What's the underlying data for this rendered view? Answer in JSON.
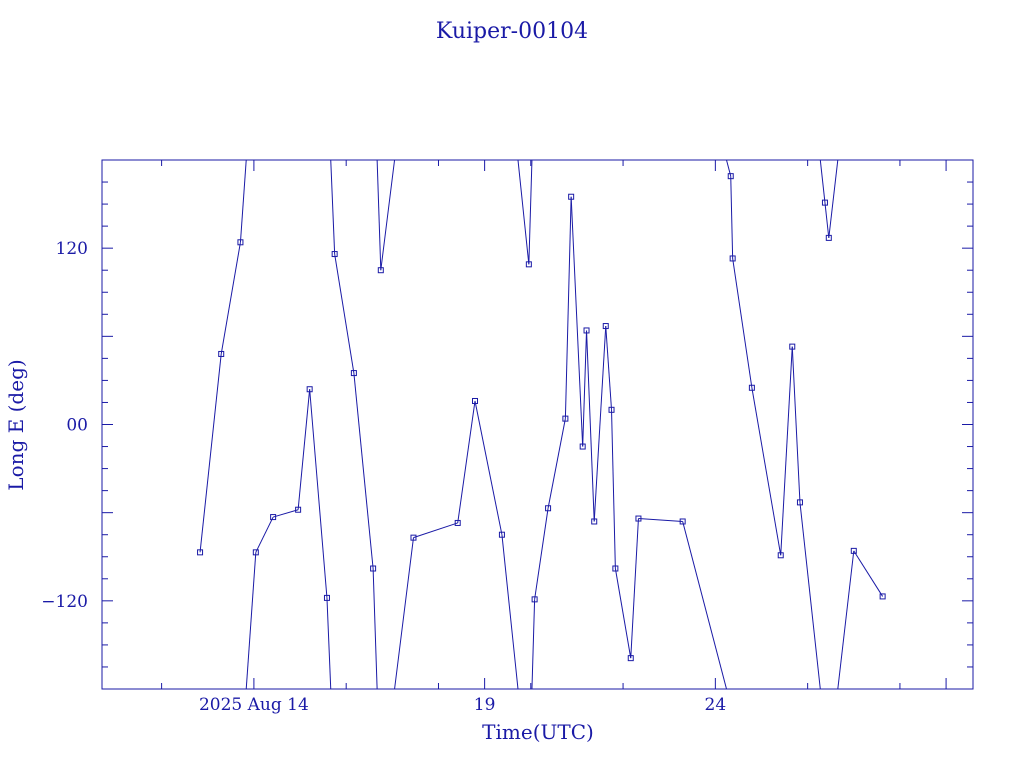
{
  "chart_data": {
    "type": "line",
    "title": "Kuiper-00104",
    "xlabel": "Time(UTC)",
    "ylabel": "Long E (deg)",
    "x_axis_type": "date",
    "xlim": [
      "2025-08-10T17:00",
      "2025-08-29T14:00"
    ],
    "ylim": [
      -180,
      180
    ],
    "x_tick_labels": [
      {
        "date": "2025-08-14",
        "label": "2025 Aug 14"
      },
      {
        "date": "2025-08-19",
        "label": "19"
      },
      {
        "date": "2025-08-24",
        "label": "24"
      }
    ],
    "y_tick_labels": [
      {
        "value": 120,
        "label": "120"
      },
      {
        "value": 0,
        "label": "00"
      },
      {
        "value": -120,
        "label": "−120"
      }
    ],
    "wrap_longitude": true,
    "marker": "square",
    "grid": false,
    "color": "#1a1aa6",
    "series": [
      {
        "points": [
          {
            "t": "2025-08-12T20:00",
            "lon": -87
          },
          {
            "t": "2025-08-13T07:00",
            "lon": 48
          },
          {
            "t": "2025-08-13T17:00",
            "lon": 124
          },
          {
            "t": "2025-08-14T01:00",
            "lon": -87
          },
          {
            "t": "2025-08-14T10:00",
            "lon": -63
          },
          {
            "t": "2025-08-14T23:00",
            "lon": -58
          },
          {
            "t": "2025-08-15T05:00",
            "lon": 24
          },
          {
            "t": "2025-08-15T14:00",
            "lon": -118
          },
          {
            "t": "2025-08-15T18:00",
            "lon": 116
          },
          {
            "t": "2025-08-16T04:00",
            "lon": 35
          },
          {
            "t": "2025-08-16T14:00",
            "lon": -98
          },
          {
            "t": "2025-08-16T18:00",
            "lon": 105
          },
          {
            "t": "2025-08-17T11:00",
            "lon": -77
          },
          {
            "t": "2025-08-18T10:00",
            "lon": -67
          },
          {
            "t": "2025-08-18T19:00",
            "lon": 16
          },
          {
            "t": "2025-08-19T09:00",
            "lon": -75
          },
          {
            "t": "2025-08-19T23:00",
            "lon": 109
          },
          {
            "t": "2025-08-20T02:00",
            "lon": -119
          },
          {
            "t": "2025-08-20T09:00",
            "lon": -57
          },
          {
            "t": "2025-08-20T18:00",
            "lon": 4
          },
          {
            "t": "2025-08-20T21:00",
            "lon": 155
          },
          {
            "t": "2025-08-21T03:00",
            "lon": -15
          },
          {
            "t": "2025-08-21T05:00",
            "lon": 64
          },
          {
            "t": "2025-08-21T09:00",
            "lon": -66
          },
          {
            "t": "2025-08-21T15:00",
            "lon": 67
          },
          {
            "t": "2025-08-21T18:00",
            "lon": 10
          },
          {
            "t": "2025-08-21T20:00",
            "lon": -98
          },
          {
            "t": "2025-08-22T04:00",
            "lon": -159
          },
          {
            "t": "2025-08-22T08:00",
            "lon": -64
          },
          {
            "t": "2025-08-23T07:00",
            "lon": -66
          },
          {
            "t": "2025-08-24T08:00",
            "lon": 169
          },
          {
            "t": "2025-08-24T09:00",
            "lon": 113
          },
          {
            "t": "2025-08-24T19:00",
            "lon": 25
          },
          {
            "t": "2025-08-25T10:00",
            "lon": -89
          },
          {
            "t": "2025-08-25T16:00",
            "lon": 53
          },
          {
            "t": "2025-08-25T20:00",
            "lon": -53
          },
          {
            "t": "2025-08-26T09:00",
            "lon": 151
          },
          {
            "t": "2025-08-26T11:00",
            "lon": 127
          },
          {
            "t": "2025-08-27T00:00",
            "lon": -86
          },
          {
            "t": "2025-08-27T15:00",
            "lon": -117
          }
        ]
      }
    ]
  }
}
